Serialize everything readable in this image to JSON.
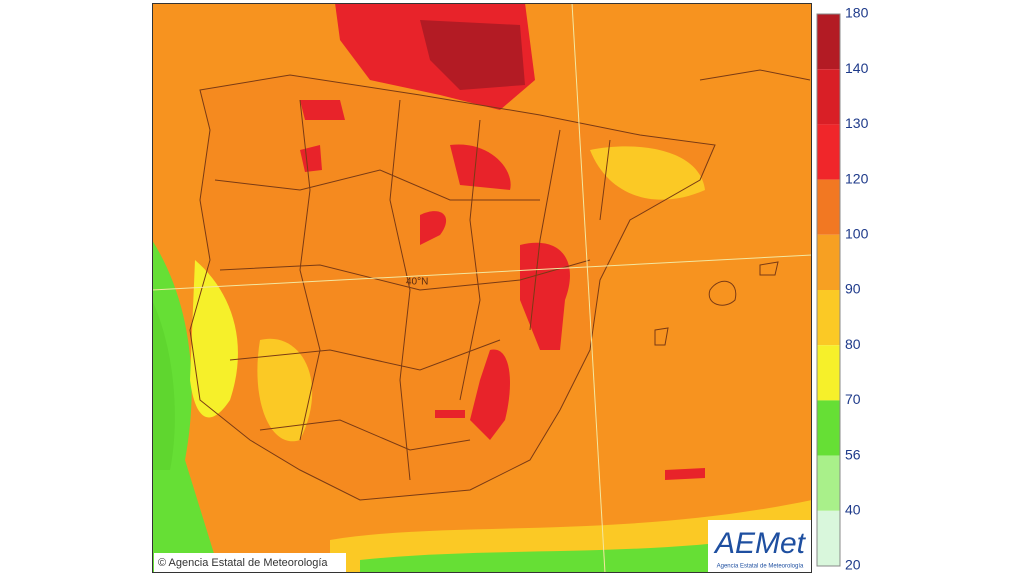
{
  "legend": {
    "levels": [
      180,
      140,
      130,
      120,
      100,
      90,
      80,
      70,
      56,
      40,
      20
    ],
    "colors": [
      "#b31b24",
      "#d91f26",
      "#f0262a",
      "#f27822",
      "#f7a022",
      "#fbc925",
      "#f6f02a",
      "#66df35",
      "#a9f08a",
      "#d9f7dc"
    ]
  },
  "map": {
    "latitude_label": "40°N",
    "credit": "© Agencia Estatal de Meteorología"
  },
  "logo": {
    "name": "AEMet",
    "subtitle": "Agencia Estatal de Meteorología"
  }
}
